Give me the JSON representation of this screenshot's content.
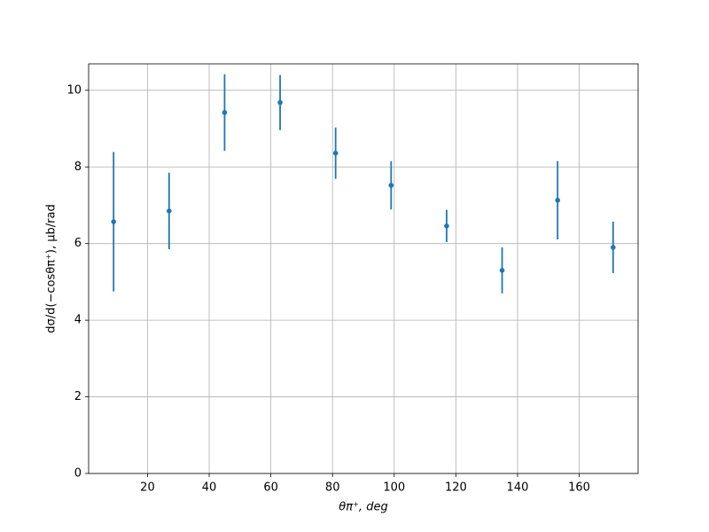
{
  "chart_data": {
    "type": "errorbar",
    "xlabel": "θπ⁺, deg",
    "ylabel": "dσ/d(−cosθπ⁺), μb/rad",
    "x": [
      9,
      27,
      45,
      63,
      81,
      99,
      117,
      135,
      153,
      171
    ],
    "series": [
      {
        "color": "#1f77b4",
        "values": [
          6.57,
          6.85,
          9.42,
          9.68,
          8.36,
          7.52,
          6.46,
          5.3,
          7.13,
          5.9
        ],
        "errors": [
          1.82,
          1.0,
          1.0,
          0.72,
          0.67,
          0.63,
          0.42,
          0.6,
          1.02,
          0.67
        ]
      }
    ],
    "xlim": [
      0.9,
      179.1
    ],
    "ylim": [
      0,
      10.69
    ],
    "xticks": [
      20,
      40,
      60,
      80,
      100,
      120,
      140,
      160
    ],
    "yticks": [
      0,
      2,
      4,
      6,
      8,
      10
    ],
    "grid": true
  }
}
